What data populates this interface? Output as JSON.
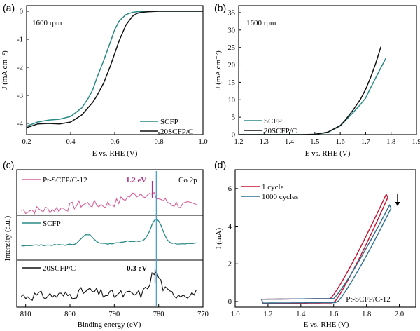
{
  "colors": {
    "teal": "#2a8a87",
    "black": "#111111",
    "pink": "#d4609a",
    "red": "#c8102e",
    "blue": "#2f6f8f",
    "marker": "#4a9fd0",
    "magenta": "#b0308a"
  },
  "chart_data": [
    {
      "panel": "(a)",
      "type": "line",
      "annotation": "1600 rpm",
      "xlabel": "E vs. RHE (V)",
      "ylabel": "J (mA cm⁻²)",
      "xlim": [
        0.2,
        1.0
      ],
      "ylim": [
        -4.4,
        0.2
      ],
      "xticks": [
        "0.2",
        "0.4",
        "0.6",
        "0.8",
        "1.0"
      ],
      "yticks": [
        "0",
        "-1",
        "-2",
        "-3",
        "-4"
      ],
      "legend_placement": "bottom-right",
      "series": [
        {
          "name": "SCFP",
          "color": "teal",
          "x": [
            0.2,
            0.25,
            0.3,
            0.35,
            0.4,
            0.45,
            0.48,
            0.5,
            0.52,
            0.55,
            0.58,
            0.6,
            0.62,
            0.65,
            0.68,
            0.7,
            0.75,
            0.8,
            0.9,
            1.0
          ],
          "y": [
            -4.1,
            -3.95,
            -3.88,
            -3.85,
            -3.75,
            -3.45,
            -3.1,
            -2.8,
            -2.35,
            -1.75,
            -1.1,
            -0.65,
            -0.35,
            -0.12,
            -0.04,
            -0.02,
            -0.01,
            0,
            0,
            0
          ]
        },
        {
          "name": "20SCFP/C",
          "color": "black",
          "x": [
            0.2,
            0.25,
            0.3,
            0.35,
            0.4,
            0.45,
            0.5,
            0.52,
            0.55,
            0.58,
            0.6,
            0.62,
            0.65,
            0.68,
            0.7,
            0.72,
            0.75,
            0.8,
            0.9,
            1.0
          ],
          "y": [
            -4.15,
            -4.02,
            -4.0,
            -4.02,
            -3.95,
            -3.7,
            -3.25,
            -3.0,
            -2.55,
            -1.95,
            -1.5,
            -1.05,
            -0.5,
            -0.18,
            -0.08,
            -0.04,
            -0.02,
            0,
            0,
            0
          ]
        }
      ]
    },
    {
      "panel": "(b)",
      "type": "line",
      "annotation": "1600 rpm",
      "xlabel": "E vs. RHE (V)",
      "ylabel": "J (mA cm⁻²)",
      "xlim": [
        1.2,
        1.9
      ],
      "ylim": [
        0,
        37
      ],
      "xticks": [
        "1.2",
        "1.3",
        "1.4",
        "1.5",
        "1.6",
        "1.7",
        "1.8",
        "1.9"
      ],
      "yticks": [
        "0",
        "5",
        "10",
        "15",
        "20",
        "25",
        "30",
        "35"
      ],
      "legend_placement": "bottom-left",
      "series": [
        {
          "name": "SCFP",
          "color": "teal",
          "x": [
            1.2,
            1.45,
            1.5,
            1.55,
            1.6,
            1.62,
            1.65,
            1.68,
            1.7,
            1.72,
            1.75,
            1.78
          ],
          "y": [
            0,
            0,
            0.1,
            0.6,
            2.5,
            4.0,
            6.3,
            8.7,
            10.5,
            13.5,
            17.8,
            22.0
          ]
        },
        {
          "name": "20SCFP/C",
          "color": "black",
          "x": [
            1.2,
            1.45,
            1.5,
            1.55,
            1.6,
            1.62,
            1.65,
            1.68,
            1.7,
            1.72,
            1.74,
            1.76
          ],
          "y": [
            0,
            0,
            0.1,
            0.7,
            2.6,
            4.2,
            7.0,
            10.2,
            13.0,
            16.5,
            20.5,
            25.2
          ]
        }
      ]
    },
    {
      "panel": "(c)",
      "type": "line",
      "annotation": "Co 2p",
      "xlabel": "Binding energy (eV)",
      "ylabel": "Intensity (a.u.)",
      "xlim": [
        812,
        770
      ],
      "xticks": [
        "810",
        "800",
        "790",
        "780",
        "770"
      ],
      "marker_line_ev": 780.5,
      "shift_labels": [
        "1.2 eV",
        "0.3 eV"
      ],
      "series": [
        {
          "name": "Pt-SCFP/C-12",
          "color": "pink"
        },
        {
          "name": "SCFP",
          "color": "teal"
        },
        {
          "name": "20SCFP/C",
          "color": "black"
        }
      ]
    },
    {
      "panel": "(d)",
      "type": "line",
      "annotation": "Pt-SCFP/C-12",
      "xlabel": "E vs. RHE (V)",
      "ylabel": "I (mA)",
      "xlim": [
        1.0,
        2.1
      ],
      "ylim": [
        -0.3,
        7.0
      ],
      "xticks": [
        "1.0",
        "1.2",
        "1.4",
        "1.6",
        "1.8",
        "2.0"
      ],
      "yticks": [
        "0",
        "2",
        "4",
        "6"
      ],
      "legend_placement": "top-left",
      "series": [
        {
          "name": "1 cycle",
          "color": "red"
        },
        {
          "name": "1000 cycles",
          "color": "blue"
        }
      ]
    }
  ]
}
